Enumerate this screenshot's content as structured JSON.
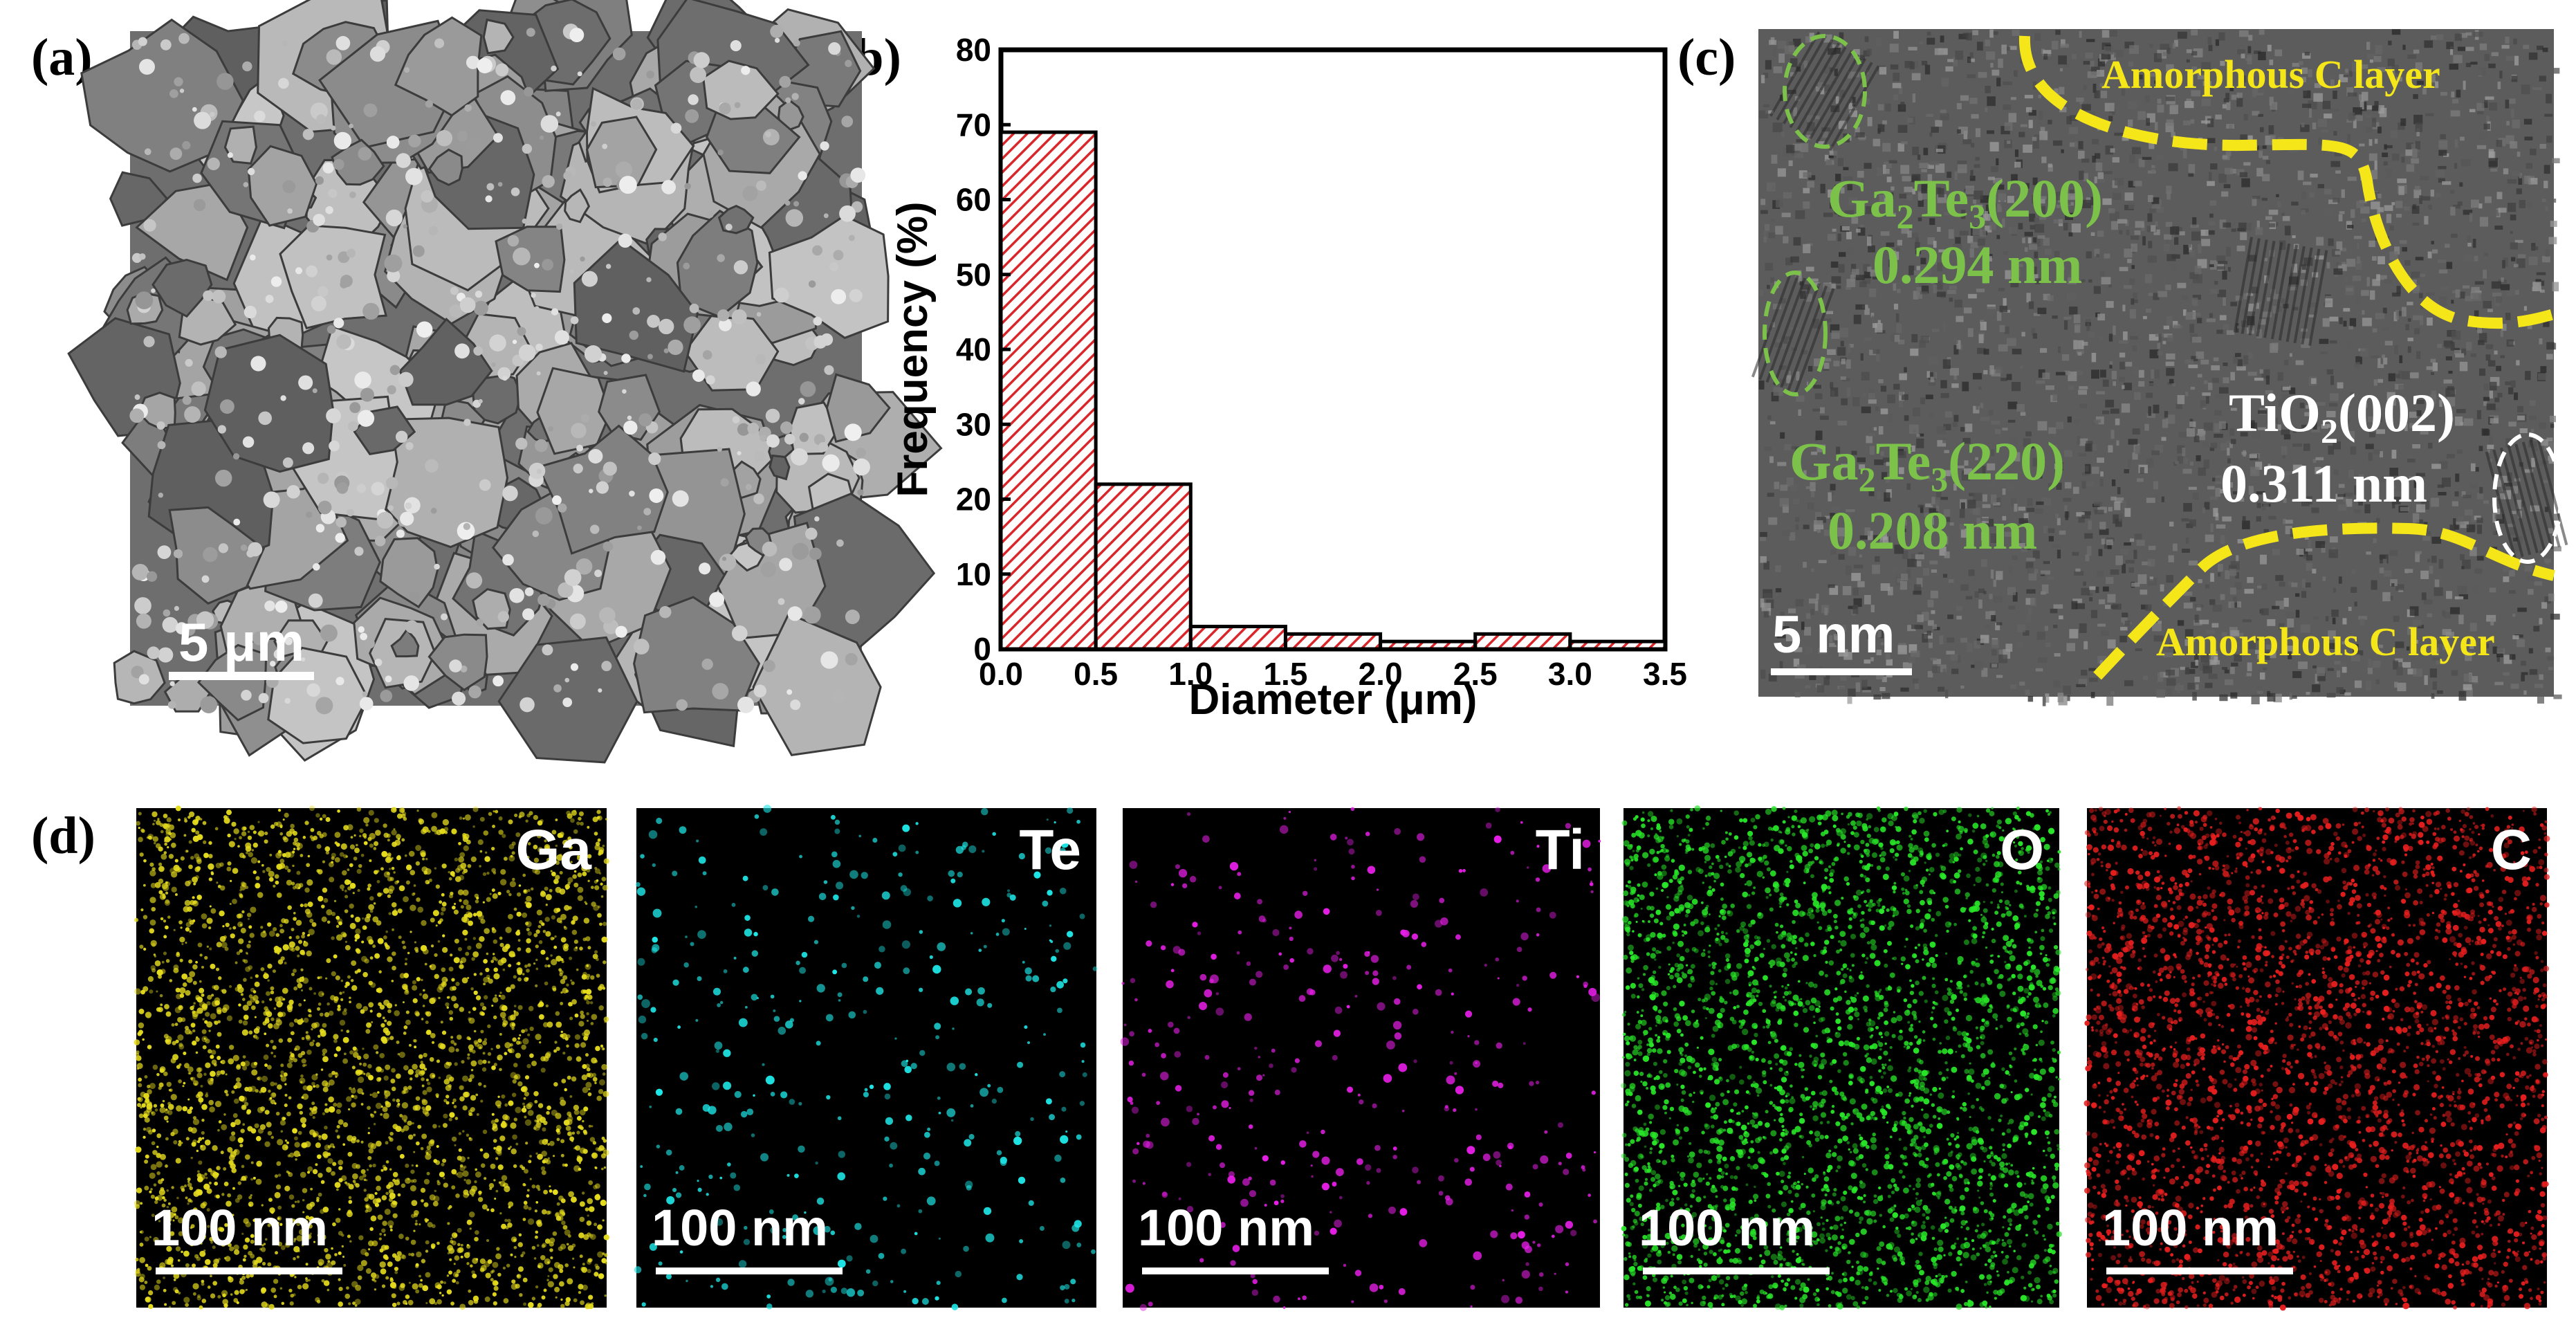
{
  "figure": {
    "panel_labels": [
      "(a)",
      "(b)",
      "(c)",
      "(d)"
    ]
  },
  "sem": {
    "scale_label": "5 μm",
    "base_color": "#7a7a7a"
  },
  "chart_data": {
    "type": "bar",
    "title": "",
    "xlabel": "Diameter (μm)",
    "ylabel": "Frequency (%)",
    "bins": [
      [
        0.0,
        0.5
      ],
      [
        0.5,
        1.0
      ],
      [
        1.0,
        1.5
      ],
      [
        1.5,
        2.0
      ],
      [
        2.0,
        2.5
      ],
      [
        2.5,
        3.0
      ],
      [
        3.0,
        3.5
      ]
    ],
    "values": [
      69,
      22,
      3,
      2,
      1,
      2,
      1
    ],
    "xlim": [
      0.0,
      3.5
    ],
    "ylim": [
      0,
      80
    ],
    "xticks": [
      "0.0",
      "0.5",
      "1.0",
      "1.5",
      "2.0",
      "2.5",
      "3.0",
      "3.5"
    ],
    "yticks": [
      "0",
      "10",
      "20",
      "30",
      "40",
      "50",
      "60",
      "70",
      "80"
    ],
    "bar_color": "#d9262a",
    "grid": false
  },
  "tem": {
    "amorphous_top": "Amorphous C layer",
    "amorphous_bottom": "Amorphous C layer",
    "ga2te3_200": "Ga2Te3(200)",
    "ga2te3_200_d": "0.294 nm",
    "ga2te3_220": "Ga2Te3(220)",
    "ga2te3_220_d": "0.208 nm",
    "tio2": "TiO2(002)",
    "tio2_d": "0.311 nm",
    "scale_label": "5 nm",
    "annotation_yellow": "#f5e61a",
    "annotation_green": "#7cc24a"
  },
  "eds_maps": [
    {
      "element": "Ga",
      "scale_label": "100 nm",
      "color": "#e6dc1e"
    },
    {
      "element": "Te",
      "scale_label": "100 nm",
      "color": "#1ee6e6"
    },
    {
      "element": "Ti",
      "scale_label": "100 nm",
      "color": "#e61ee6"
    },
    {
      "element": "O",
      "scale_label": "100 nm",
      "color": "#28e628"
    },
    {
      "element": "C",
      "scale_label": "100 nm",
      "color": "#e61e1e"
    }
  ]
}
